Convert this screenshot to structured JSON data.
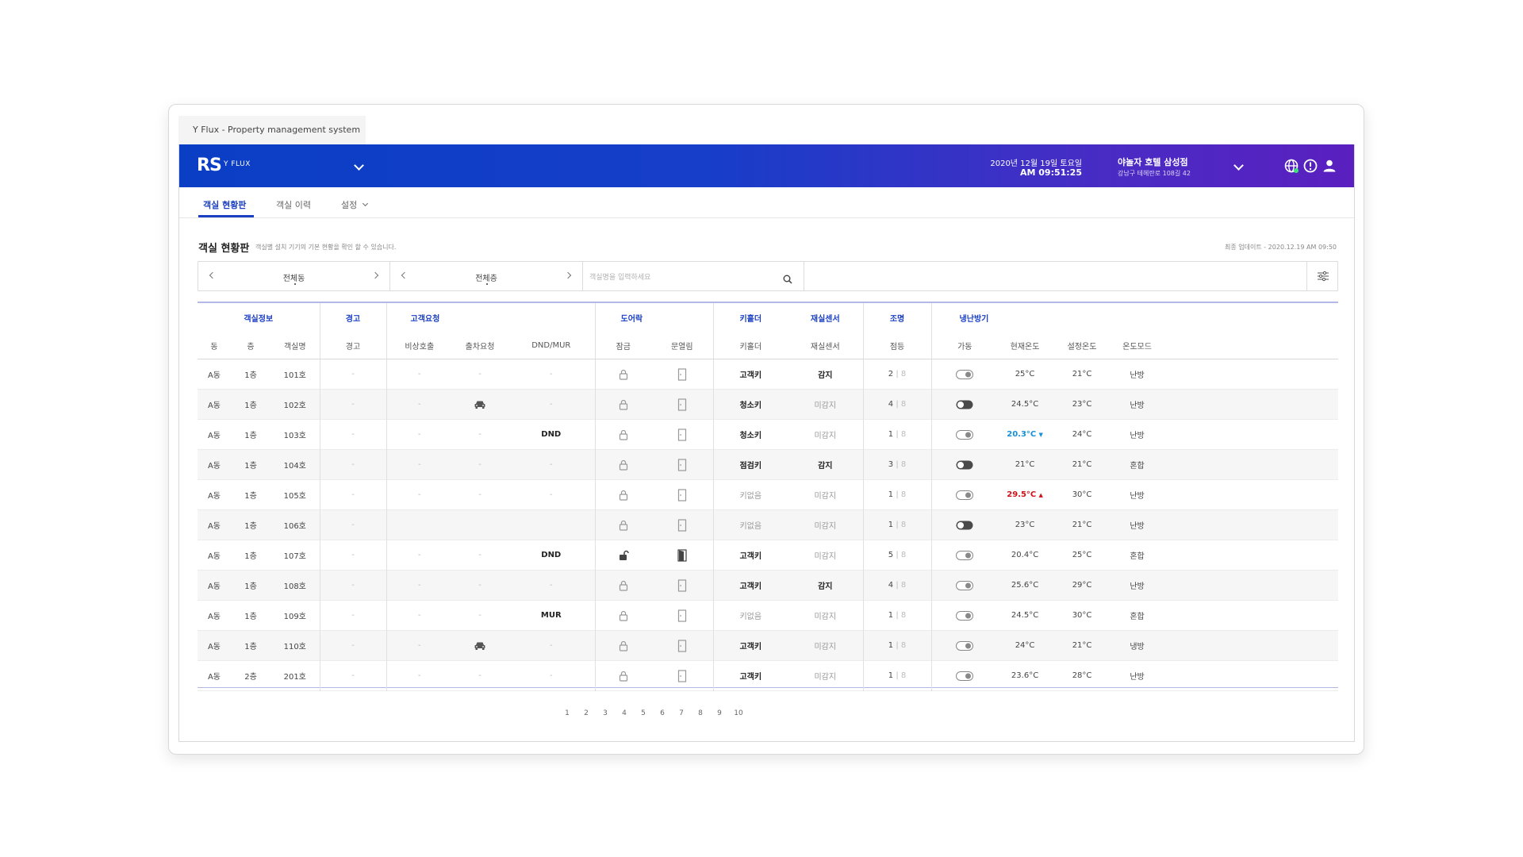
{
  "window_title": "Y Flux - Property management system",
  "header": {
    "logo": "RS",
    "logo_sub": "Y FLUX",
    "date": "2020년 12월 19일 토요일",
    "time": "AM 09:51:25",
    "hotel_name": "야놀자 호텔 삼성점",
    "hotel_address": "강남구 테헤란로 108길 42",
    "icons": [
      "globe-icon",
      "alert-icon",
      "user-icon"
    ]
  },
  "nav": {
    "items": [
      {
        "label": "객실 현황판",
        "active": true
      },
      {
        "label": "객실 이력",
        "active": false
      },
      {
        "label": "설정",
        "active": false
      }
    ]
  },
  "page": {
    "title": "객실 현황판",
    "description": "객실별 설치 기기의 기본 현황을 확인 할 수 있습니다.",
    "updated": "최종 업데이트 - 2020.12.19 AM 09:50"
  },
  "filters": {
    "building": "전체동",
    "floor": "전체층",
    "search_placeholder": "객실명을 입력하세요"
  },
  "table": {
    "groups": [
      "객실정보",
      "경고",
      "고객요청",
      "도어락",
      "키홀더",
      "재실센서",
      "조명",
      "냉난방기"
    ],
    "columns": [
      "동",
      "층",
      "객실명",
      "경고",
      "비상호출",
      "출차요청",
      "DND/MUR",
      "잠금",
      "문열림",
      "키홀더",
      "재실센서",
      "점등",
      "가동",
      "현재온도",
      "설정온도",
      "온도모드"
    ],
    "rows": [
      {
        "dong": "A동",
        "floor": "1층",
        "room": "101호",
        "warn": "-",
        "emergency": "-",
        "car": "-",
        "dnd": "-",
        "lock": "locked",
        "door": "closed",
        "key": "고객키",
        "key_style": "b",
        "sensor": "감지",
        "sensor_style": "b",
        "light_on": "2",
        "light_total": "8",
        "hvac_on": false,
        "cur": "25°C",
        "cur_style": "",
        "set": "21°C",
        "mode": "난방"
      },
      {
        "dong": "A동",
        "floor": "1층",
        "room": "102호",
        "warn": "-",
        "emergency": "-",
        "car": "car",
        "dnd": "-",
        "lock": "locked",
        "door": "closed",
        "key": "청소키",
        "key_style": "b",
        "sensor": "미감지",
        "sensor_style": "gray",
        "light_on": "4",
        "light_total": "8",
        "hvac_on": true,
        "cur": "24.5°C",
        "cur_style": "",
        "set": "23°C",
        "mode": "난방"
      },
      {
        "dong": "A동",
        "floor": "1층",
        "room": "103호",
        "warn": "-",
        "emergency": "-",
        "car": "-",
        "dnd": "DND",
        "lock": "locked",
        "door": "closed",
        "key": "청소키",
        "key_style": "b",
        "sensor": "미감지",
        "sensor_style": "gray",
        "light_on": "1",
        "light_total": "8",
        "hvac_on": false,
        "cur": "20.3°C",
        "cur_style": "blue",
        "set": "24°C",
        "mode": "난방"
      },
      {
        "dong": "A동",
        "floor": "1층",
        "room": "104호",
        "warn": "-",
        "emergency": "-",
        "car": "-",
        "dnd": "-",
        "lock": "locked",
        "door": "closed",
        "key": "점검키",
        "key_style": "b",
        "sensor": "감지",
        "sensor_style": "b",
        "light_on": "3",
        "light_total": "8",
        "hvac_on": true,
        "cur": "21°C",
        "cur_style": "",
        "set": "21°C",
        "mode": "혼합"
      },
      {
        "dong": "A동",
        "floor": "1층",
        "room": "105호",
        "warn": "-",
        "emergency": "-",
        "car": "-",
        "dnd": "-",
        "lock": "locked",
        "door": "closed",
        "key": "키없음",
        "key_style": "gray",
        "sensor": "미감지",
        "sensor_style": "gray",
        "light_on": "1",
        "light_total": "8",
        "hvac_on": false,
        "cur": "29.5°C",
        "cur_style": "red",
        "set": "30°C",
        "mode": "난방"
      },
      {
        "dong": "A동",
        "floor": "1층",
        "room": "106호",
        "warn": "-",
        "emergency": "",
        "car": "",
        "dnd": "",
        "lock": "locked",
        "door": "closed",
        "key": "키없음",
        "key_style": "gray",
        "sensor": "미감지",
        "sensor_style": "gray",
        "light_on": "1",
        "light_total": "8",
        "hvac_on": true,
        "cur": "23°C",
        "cur_style": "",
        "set": "21°C",
        "mode": "난방"
      },
      {
        "dong": "A동",
        "floor": "1층",
        "room": "107호",
        "warn": "-",
        "emergency": "-",
        "car": "-",
        "dnd": "DND",
        "lock": "unlocked",
        "door": "open",
        "key": "고객키",
        "key_style": "b",
        "sensor": "미감지",
        "sensor_style": "gray",
        "light_on": "5",
        "light_total": "8",
        "hvac_on": false,
        "cur": "20.4°C",
        "cur_style": "",
        "set": "25°C",
        "mode": "혼합"
      },
      {
        "dong": "A동",
        "floor": "1층",
        "room": "108호",
        "warn": "-",
        "emergency": "-",
        "car": "-",
        "dnd": "-",
        "lock": "locked",
        "door": "closed",
        "key": "고객키",
        "key_style": "b",
        "sensor": "감지",
        "sensor_style": "b",
        "light_on": "4",
        "light_total": "8",
        "hvac_on": false,
        "cur": "25.6°C",
        "cur_style": "",
        "set": "29°C",
        "mode": "난방"
      },
      {
        "dong": "A동",
        "floor": "1층",
        "room": "109호",
        "warn": "-",
        "emergency": "-",
        "car": "-",
        "dnd": "MUR",
        "lock": "locked",
        "door": "closed",
        "key": "키없음",
        "key_style": "gray",
        "sensor": "미감지",
        "sensor_style": "gray",
        "light_on": "1",
        "light_total": "8",
        "hvac_on": false,
        "cur": "24.5°C",
        "cur_style": "",
        "set": "30°C",
        "mode": "혼합"
      },
      {
        "dong": "A동",
        "floor": "1층",
        "room": "110호",
        "warn": "-",
        "emergency": "-",
        "car": "car",
        "dnd": "-",
        "lock": "locked",
        "door": "closed",
        "key": "고객키",
        "key_style": "b",
        "sensor": "미감지",
        "sensor_style": "gray",
        "light_on": "1",
        "light_total": "8",
        "hvac_on": false,
        "cur": "24°C",
        "cur_style": "",
        "set": "21°C",
        "mode": "냉방"
      },
      {
        "dong": "A동",
        "floor": "2층",
        "room": "201호",
        "warn": "-",
        "emergency": "-",
        "car": "-",
        "dnd": "-",
        "lock": "locked",
        "door": "closed",
        "key": "고객키",
        "key_style": "b",
        "sensor": "미감지",
        "sensor_style": "gray",
        "light_on": "1",
        "light_total": "8",
        "hvac_on": false,
        "cur": "23.6°C",
        "cur_style": "",
        "set": "28°C",
        "mode": "난방"
      }
    ]
  },
  "pagination": [
    "1",
    "2",
    "3",
    "4",
    "5",
    "6",
    "7",
    "8",
    "9",
    "10"
  ]
}
